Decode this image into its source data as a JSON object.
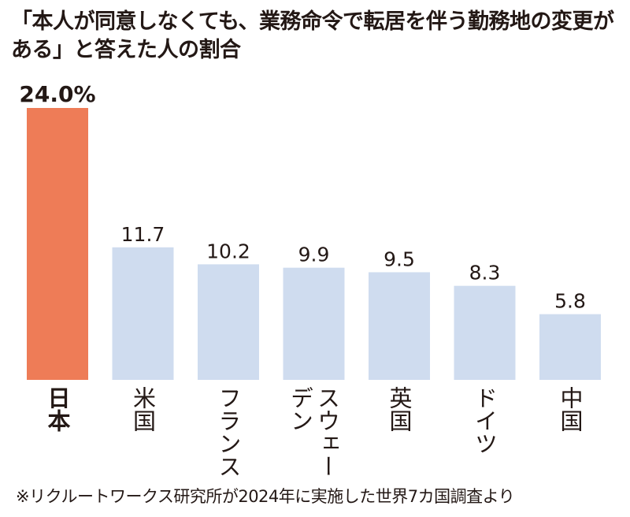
{
  "title": "「本人が同意しなくても、業務命令で転居を伴う勤務地の変更がある」と答えた人の割合",
  "footnote": "※リクルートワークス研究所が2024年に実施した世界7カ国調査より",
  "chart_data": {
    "type": "bar",
    "title": "「本人が同意しなくても、業務命令で転居を伴う勤務地の変更がある」と答えた人の割合",
    "categories": [
      "日本",
      "米国",
      "フランス",
      "スウェーデン",
      "英国",
      "ドイツ",
      "中国"
    ],
    "values": [
      24.0,
      11.7,
      10.2,
      9.9,
      9.5,
      8.3,
      5.8
    ],
    "value_labels": [
      "24.0",
      "11.7",
      "10.2",
      "9.9",
      "9.5",
      "8.3",
      "5.8"
    ],
    "unit": "%",
    "ylim": [
      0,
      24
    ],
    "grid": false,
    "highlight_category": "日本",
    "colors": {
      "highlight": "#ee7c57",
      "default": "#cfdcef"
    }
  }
}
